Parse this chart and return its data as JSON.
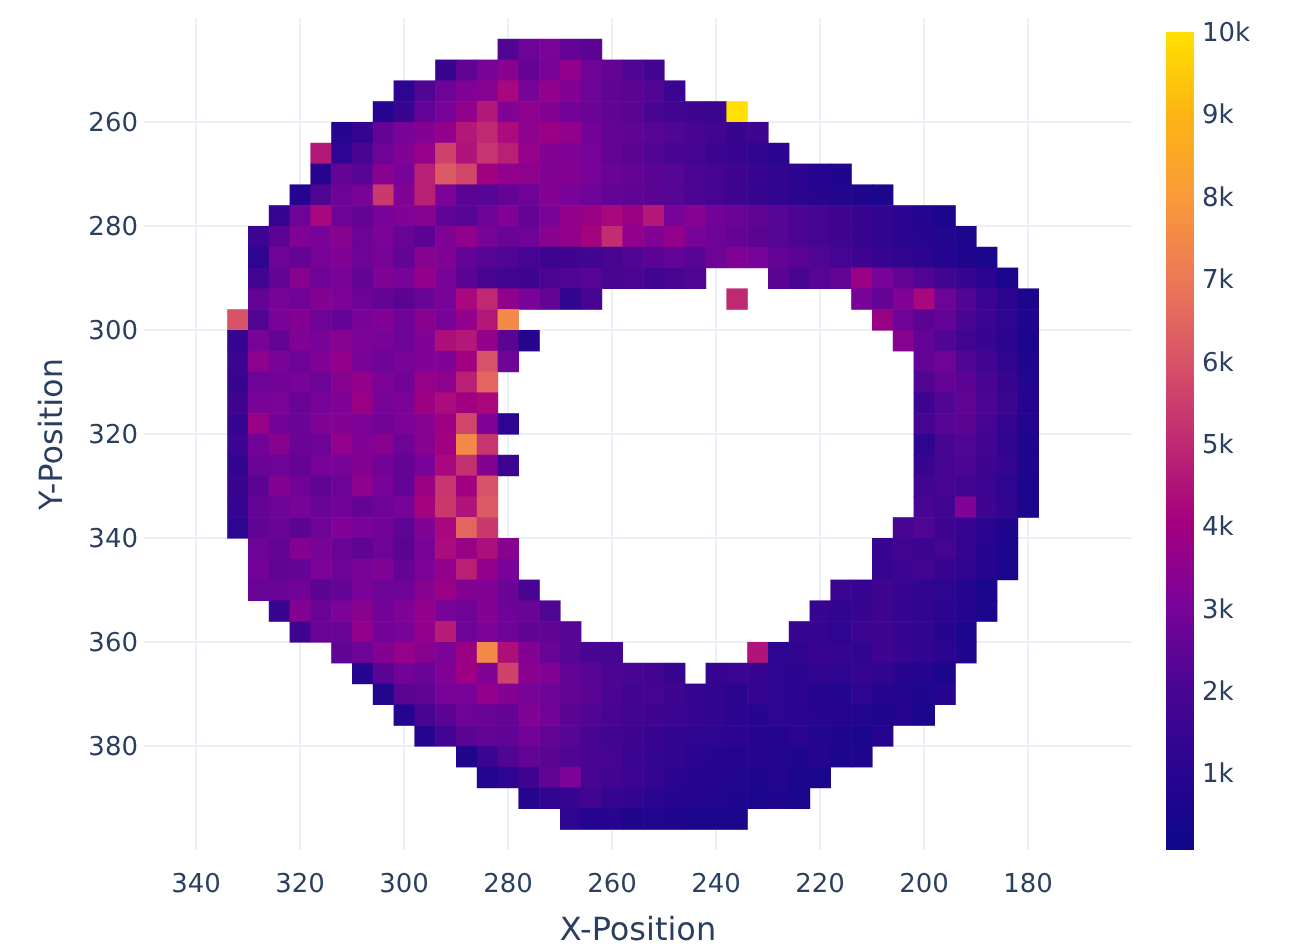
{
  "chart_data": {
    "type": "heatmap",
    "xlabel": "X-Position",
    "ylabel": "Y-Position",
    "x": [
      332,
      328,
      324,
      320,
      316,
      312,
      308,
      304,
      300,
      296,
      292,
      288,
      284,
      280,
      276,
      272,
      268,
      264,
      260,
      256,
      252,
      248,
      244,
      240,
      236,
      232,
      228,
      224,
      220,
      216,
      212,
      208,
      204,
      200,
      196,
      192,
      188,
      184,
      180
    ],
    "y": [
      246,
      250,
      254,
      258,
      262,
      266,
      270,
      274,
      278,
      282,
      286,
      290,
      294,
      298,
      302,
      306,
      310,
      314,
      318,
      322,
      326,
      330,
      334,
      338,
      342,
      346,
      350,
      354,
      358,
      362,
      366,
      370,
      374,
      378,
      382,
      386,
      390,
      394
    ],
    "xlim": [
      350,
      160
    ],
    "ylim": [
      400,
      240
    ],
    "xticks": [
      340,
      320,
      300,
      280,
      260,
      240,
      220,
      200,
      180
    ],
    "yticks": [
      260,
      280,
      300,
      320,
      340,
      360,
      380
    ],
    "grid": true,
    "clim": [
      70,
      10000
    ],
    "cticks": [
      {
        "value": 1000,
        "label": "1k"
      },
      {
        "value": 2000,
        "label": "2k"
      },
      {
        "value": 3000,
        "label": "3k"
      },
      {
        "value": 4000,
        "label": "4k"
      },
      {
        "value": 5000,
        "label": "5k"
      },
      {
        "value": 6000,
        "label": "6k"
      },
      {
        "value": 7000,
        "label": "7k"
      },
      {
        "value": 8000,
        "label": "8k"
      },
      {
        "value": 9000,
        "label": "9k"
      },
      {
        "value": 10000,
        "label": "10k"
      }
    ],
    "cells": [
      [
        null,
        null,
        null,
        null,
        null,
        null,
        null,
        null,
        null,
        null,
        null,
        null,
        null,
        2200,
        2800,
        3100,
        2600,
        2400,
        null,
        null,
        null,
        null,
        null,
        null,
        null,
        null,
        null,
        null,
        null,
        null,
        null,
        null,
        null,
        null,
        null,
        null,
        null,
        null,
        null
      ],
      [
        null,
        null,
        null,
        null,
        null,
        null,
        null,
        null,
        null,
        null,
        1500,
        2500,
        3000,
        3400,
        2600,
        3000,
        3600,
        2800,
        2600,
        2200,
        1800,
        null,
        null,
        null,
        null,
        null,
        null,
        null,
        null,
        null,
        null,
        null,
        null,
        null,
        null,
        null,
        null,
        null,
        null
      ],
      [
        null,
        null,
        null,
        null,
        null,
        null,
        null,
        null,
        1200,
        2200,
        2800,
        3200,
        3400,
        4200,
        3000,
        3600,
        3300,
        2800,
        2500,
        2400,
        2200,
        1600,
        null,
        null,
        null,
        null,
        null,
        null,
        null,
        null,
        null,
        null,
        null,
        null,
        null,
        null,
        null,
        null,
        null
      ],
      [
        null,
        null,
        null,
        null,
        null,
        null,
        null,
        900,
        1500,
        2600,
        3000,
        3600,
        4600,
        3200,
        3500,
        3300,
        2900,
        2700,
        2500,
        2400,
        2000,
        1800,
        1700,
        1600,
        10000,
        null,
        null,
        null,
        null,
        null,
        null,
        null,
        null,
        null,
        null,
        null,
        null,
        null,
        null
      ],
      [
        null,
        null,
        null,
        null,
        null,
        1000,
        1400,
        2600,
        3000,
        3300,
        3600,
        4600,
        5000,
        4300,
        3500,
        3800,
        3600,
        2900,
        2600,
        2500,
        2300,
        2200,
        2000,
        1800,
        1500,
        1700,
        null,
        null,
        null,
        null,
        null,
        null,
        null,
        null,
        null,
        null,
        null,
        null,
        null
      ],
      [
        null,
        null,
        null,
        null,
        4600,
        1200,
        2000,
        2800,
        3200,
        3700,
        5600,
        4500,
        5300,
        4800,
        3700,
        3300,
        3200,
        3000,
        2600,
        2400,
        2200,
        2000,
        1900,
        1600,
        1500,
        1300,
        1100,
        null,
        null,
        null,
        null,
        null,
        null,
        null,
        null,
        null,
        null,
        null,
        null
      ],
      [
        null,
        null,
        null,
        null,
        1000,
        2600,
        2300,
        3400,
        3000,
        4800,
        6200,
        5700,
        4000,
        3600,
        3500,
        3200,
        3300,
        3000,
        2700,
        2600,
        2400,
        2300,
        2100,
        1900,
        1700,
        1500,
        1300,
        1100,
        900,
        700,
        null,
        null,
        null,
        null,
        null,
        null,
        null,
        null,
        null
      ],
      [
        null,
        null,
        null,
        900,
        2200,
        2800,
        3000,
        5400,
        3200,
        4800,
        3100,
        2400,
        2300,
        2600,
        2800,
        3300,
        3000,
        2800,
        2600,
        2500,
        2400,
        2300,
        2100,
        1900,
        1700,
        1500,
        1300,
        1100,
        1000,
        800,
        700,
        600,
        null,
        null,
        null,
        null,
        null,
        null,
        null
      ],
      [
        null,
        null,
        1400,
        2800,
        4200,
        2800,
        2600,
        3000,
        3200,
        3400,
        2500,
        2300,
        2800,
        3200,
        2600,
        3000,
        3600,
        3800,
        4200,
        3800,
        4600,
        3000,
        3400,
        2900,
        2700,
        2500,
        2300,
        2100,
        1900,
        1700,
        1500,
        1300,
        1100,
        800,
        600,
        null,
        null,
        null,
        null
      ],
      [
        null,
        1600,
        2400,
        3200,
        3000,
        3400,
        2800,
        3100,
        2700,
        2400,
        3200,
        3600,
        3000,
        2700,
        2800,
        3400,
        3600,
        4100,
        5100,
        3600,
        3200,
        3600,
        3000,
        2800,
        2600,
        2400,
        2300,
        2100,
        1900,
        1700,
        1500,
        1300,
        1100,
        1000,
        800,
        600,
        null,
        null,
        null
      ],
      [
        null,
        1200,
        2800,
        2600,
        3000,
        3200,
        2800,
        3000,
        2600,
        3400,
        3200,
        2600,
        2300,
        2200,
        1900,
        1600,
        1700,
        1800,
        2000,
        2200,
        2400,
        2600,
        2300,
        2800,
        3200,
        3000,
        2600,
        2400,
        2200,
        1900,
        1700,
        1500,
        1300,
        1100,
        900,
        700,
        500,
        null,
        null
      ],
      [
        null,
        1800,
        2600,
        3400,
        2800,
        3000,
        2600,
        3200,
        3000,
        3600,
        3000,
        2400,
        2000,
        1800,
        1700,
        2100,
        2200,
        2300,
        2000,
        2100,
        1800,
        2000,
        2200,
        null,
        null,
        null,
        2400,
        2000,
        2300,
        2600,
        3800,
        3000,
        2600,
        2200,
        1800,
        1500,
        1100,
        600,
        null
      ],
      [
        null,
        2600,
        3000,
        2800,
        3300,
        3100,
        2800,
        2600,
        2400,
        2700,
        3000,
        4200,
        5000,
        3600,
        3000,
        2600,
        1300,
        1900,
        null,
        null,
        null,
        null,
        null,
        null,
        5000,
        null,
        null,
        null,
        null,
        null,
        3000,
        2600,
        3200,
        4200,
        2800,
        2200,
        1600,
        1100,
        600
      ],
      [
        6000,
        2200,
        3000,
        3300,
        2800,
        2600,
        3000,
        3200,
        2800,
        3400,
        3000,
        3600,
        4600,
        7500,
        null,
        null,
        null,
        null,
        null,
        null,
        null,
        null,
        null,
        null,
        null,
        null,
        null,
        null,
        null,
        null,
        null,
        3800,
        2800,
        2400,
        2600,
        2000,
        1600,
        1200,
        700
      ],
      [
        1400,
        3000,
        2600,
        3200,
        3000,
        3400,
        3100,
        3000,
        2800,
        3200,
        4400,
        4600,
        3600,
        2400,
        1000,
        null,
        null,
        null,
        null,
        null,
        null,
        null,
        null,
        null,
        null,
        null,
        null,
        null,
        null,
        null,
        null,
        null,
        3400,
        2600,
        2200,
        1800,
        1500,
        1100,
        600
      ],
      [
        1600,
        3500,
        3000,
        2800,
        3200,
        3600,
        3000,
        2800,
        3000,
        3200,
        3200,
        4000,
        6000,
        2800,
        null,
        null,
        null,
        null,
        null,
        null,
        null,
        null,
        null,
        null,
        null,
        null,
        null,
        null,
        null,
        null,
        null,
        null,
        null,
        2600,
        2800,
        2200,
        1800,
        1300,
        700
      ],
      [
        1500,
        2800,
        2900,
        3000,
        2800,
        3400,
        3600,
        3100,
        2900,
        3700,
        3500,
        4800,
        6500,
        null,
        null,
        null,
        null,
        null,
        null,
        null,
        null,
        null,
        null,
        null,
        null,
        null,
        null,
        null,
        null,
        null,
        null,
        null,
        null,
        2200,
        2600,
        2400,
        2000,
        1500,
        800
      ],
      [
        1700,
        3000,
        3100,
        2700,
        3000,
        3200,
        3800,
        3000,
        3100,
        3900,
        4300,
        4000,
        4200,
        null,
        null,
        null,
        null,
        null,
        null,
        null,
        null,
        null,
        null,
        null,
        null,
        null,
        null,
        null,
        null,
        null,
        null,
        null,
        null,
        1600,
        2200,
        2500,
        2100,
        1600,
        900
      ],
      [
        1400,
        3800,
        2900,
        2700,
        3200,
        3300,
        3100,
        2900,
        3100,
        3400,
        3900,
        5700,
        3200,
        1200,
        null,
        null,
        null,
        null,
        null,
        null,
        null,
        null,
        null,
        null,
        null,
        null,
        null,
        null,
        null,
        null,
        null,
        null,
        null,
        1900,
        2300,
        2400,
        1900,
        1400,
        800
      ],
      [
        1600,
        2900,
        3400,
        2700,
        2800,
        3600,
        3200,
        3400,
        2800,
        3400,
        4000,
        7500,
        5300,
        null,
        null,
        null,
        null,
        null,
        null,
        null,
        null,
        null,
        null,
        null,
        null,
        null,
        null,
        null,
        null,
        null,
        null,
        null,
        null,
        1200,
        2000,
        2200,
        1800,
        1300,
        700
      ],
      [
        1300,
        2700,
        2800,
        2600,
        3000,
        3000,
        3300,
        2900,
        2600,
        3000,
        4200,
        5200,
        3300,
        1600,
        null,
        null,
        null,
        null,
        null,
        null,
        null,
        null,
        null,
        null,
        null,
        null,
        null,
        null,
        null,
        null,
        null,
        null,
        null,
        1500,
        1900,
        2100,
        1700,
        1400,
        700
      ],
      [
        1500,
        2400,
        3300,
        2900,
        2500,
        2800,
        3500,
        3000,
        2600,
        3800,
        5300,
        4000,
        6000,
        null,
        null,
        null,
        null,
        null,
        null,
        null,
        null,
        null,
        null,
        null,
        null,
        null,
        null,
        null,
        null,
        null,
        null,
        null,
        null,
        1800,
        2000,
        1800,
        1600,
        1200,
        600
      ],
      [
        1400,
        2600,
        2800,
        3000,
        2700,
        2900,
        2600,
        2800,
        3000,
        4100,
        5400,
        4500,
        6200,
        null,
        null,
        null,
        null,
        null,
        null,
        null,
        null,
        null,
        null,
        null,
        null,
        null,
        null,
        null,
        null,
        null,
        null,
        null,
        null,
        2000,
        1800,
        3200,
        1700,
        1300,
        600
      ],
      [
        1200,
        2500,
        2700,
        2400,
        2800,
        3200,
        3000,
        2900,
        2500,
        3200,
        4200,
        6500,
        5400,
        null,
        null,
        null,
        null,
        null,
        null,
        null,
        null,
        null,
        null,
        null,
        null,
        null,
        null,
        null,
        null,
        null,
        null,
        null,
        2000,
        2200,
        1700,
        1500,
        1100,
        700,
        null
      ],
      [
        null,
        2800,
        2600,
        3300,
        3000,
        2700,
        2500,
        2800,
        2400,
        3000,
        4300,
        3800,
        4400,
        3400,
        null,
        null,
        null,
        null,
        null,
        null,
        null,
        null,
        null,
        null,
        null,
        null,
        null,
        null,
        null,
        null,
        null,
        1500,
        1800,
        1600,
        1900,
        1400,
        1000,
        600,
        null
      ],
      [
        null,
        2900,
        2500,
        2600,
        3100,
        2800,
        3000,
        3200,
        2600,
        3100,
        3600,
        4800,
        3600,
        3000,
        null,
        null,
        null,
        null,
        null,
        null,
        null,
        null,
        null,
        null,
        null,
        null,
        null,
        null,
        null,
        null,
        null,
        1400,
        1600,
        1800,
        1500,
        1300,
        1000,
        500,
        null
      ],
      [
        null,
        2700,
        2700,
        2900,
        2400,
        2600,
        3000,
        2800,
        2800,
        3400,
        3800,
        3300,
        3200,
        2700,
        2000,
        null,
        null,
        null,
        null,
        null,
        null,
        null,
        null,
        null,
        null,
        null,
        null,
        null,
        null,
        1600,
        1400,
        1700,
        1500,
        1300,
        1200,
        900,
        500,
        null,
        null
      ],
      [
        null,
        null,
        1500,
        3300,
        2700,
        3100,
        3400,
        2900,
        3200,
        3600,
        3000,
        2800,
        3300,
        2800,
        2700,
        2200,
        null,
        null,
        null,
        null,
        null,
        null,
        null,
        null,
        null,
        null,
        null,
        null,
        1500,
        1300,
        1500,
        1700,
        1400,
        1300,
        1100,
        900,
        600,
        null,
        null
      ],
      [
        null,
        null,
        null,
        1700,
        2700,
        2700,
        3600,
        2900,
        3000,
        3600,
        4700,
        2800,
        3100,
        2800,
        2500,
        2500,
        2300,
        null,
        null,
        null,
        null,
        null,
        null,
        null,
        null,
        null,
        null,
        1500,
        1400,
        1200,
        1600,
        1700,
        1500,
        1300,
        1000,
        600,
        null,
        null,
        null
      ],
      [
        null,
        null,
        null,
        null,
        null,
        2500,
        2800,
        3300,
        3700,
        3400,
        3100,
        3800,
        7500,
        4400,
        3300,
        2700,
        2300,
        2000,
        1900,
        null,
        null,
        null,
        null,
        null,
        null,
        4500,
        1200,
        1300,
        1500,
        1400,
        1300,
        1700,
        1500,
        1300,
        1100,
        700,
        null,
        null,
        null
      ],
      [
        null,
        null,
        null,
        null,
        null,
        null,
        900,
        2400,
        2900,
        2700,
        3200,
        3900,
        3200,
        5600,
        3400,
        3200,
        2600,
        2300,
        2100,
        2000,
        1800,
        1500,
        null,
        1400,
        1600,
        1500,
        1200,
        1100,
        1300,
        1200,
        1400,
        1300,
        1000,
        900,
        600,
        null,
        null,
        null,
        null
      ],
      [
        null,
        null,
        null,
        null,
        null,
        null,
        null,
        800,
        2400,
        2500,
        3000,
        3000,
        3600,
        3300,
        3000,
        2800,
        2600,
        2400,
        2100,
        1800,
        1900,
        1700,
        1400,
        1300,
        1100,
        1500,
        1200,
        1100,
        900,
        800,
        1200,
        1000,
        800,
        700,
        1000,
        null,
        null,
        null,
        null
      ],
      [
        null,
        null,
        null,
        null,
        null,
        null,
        null,
        null,
        900,
        2000,
        2400,
        2800,
        2700,
        2600,
        3200,
        2900,
        2400,
        2200,
        2000,
        1800,
        1700,
        1600,
        1500,
        1300,
        1100,
        1000,
        1200,
        1100,
        1000,
        900,
        800,
        700,
        900,
        600,
        null,
        null,
        null,
        null,
        null
      ],
      [
        null,
        null,
        null,
        null,
        null,
        null,
        null,
        null,
        null,
        1000,
        1800,
        2400,
        2600,
        2500,
        2900,
        2600,
        2300,
        2000,
        1800,
        1700,
        1500,
        1300,
        1200,
        1200,
        1100,
        1000,
        900,
        1100,
        800,
        700,
        600,
        900,
        null,
        null,
        null,
        null,
        null,
        null,
        null
      ],
      [
        null,
        null,
        null,
        null,
        null,
        null,
        null,
        null,
        null,
        null,
        null,
        700,
        1600,
        2200,
        2600,
        2400,
        2200,
        2000,
        1900,
        1600,
        1400,
        1300,
        1100,
        1000,
        900,
        1000,
        800,
        700,
        900,
        600,
        700,
        null,
        null,
        null,
        null,
        null,
        null,
        null,
        null
      ],
      [
        null,
        null,
        null,
        null,
        null,
        null,
        null,
        null,
        null,
        null,
        null,
        null,
        800,
        1200,
        1700,
        2500,
        3100,
        2000,
        1800,
        1600,
        1400,
        1100,
        1000,
        900,
        800,
        700,
        800,
        600,
        500,
        null,
        null,
        null,
        null,
        null,
        null,
        null,
        null,
        null,
        null
      ],
      [
        null,
        null,
        null,
        null,
        null,
        null,
        null,
        null,
        null,
        null,
        null,
        null,
        null,
        null,
        900,
        1300,
        1500,
        1800,
        1400,
        1300,
        1100,
        1000,
        900,
        800,
        700,
        600,
        700,
        500,
        null,
        null,
        null,
        null,
        null,
        null,
        null,
        null,
        null,
        null,
        null
      ],
      [
        null,
        null,
        null,
        null,
        null,
        null,
        null,
        null,
        null,
        null,
        null,
        null,
        null,
        null,
        null,
        null,
        1200,
        900,
        1000,
        700,
        800,
        700,
        600,
        500,
        600,
        null,
        null,
        null,
        null,
        null,
        null,
        null,
        null,
        null,
        null,
        null,
        null,
        null,
        null
      ]
    ]
  }
}
